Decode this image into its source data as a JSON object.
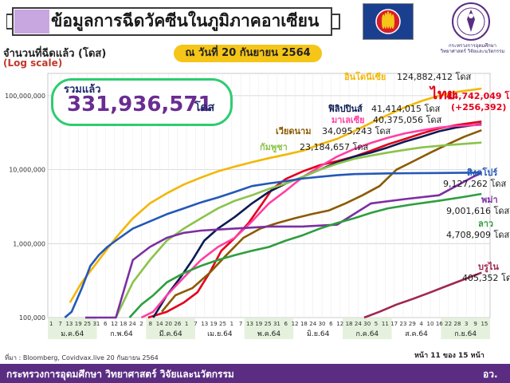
{
  "header": {
    "title": "ข้อมูลการฉีดวัคซีนในภูมิภาคอาเซียน",
    "ministry_text": "กระทรวงการอุดมศึกษา วิทยาศาสตร์ วิจัยและนวัตกรรม"
  },
  "total": {
    "label": "รวมแล้ว",
    "value": "331,936,571",
    "unit": "โดส"
  },
  "date_label": "ณ วันที่ 20 กันยายน 2564",
  "footer": {
    "source": "ที่มา : Bloomberg, Covidvax.live 20 กันยายน 2564",
    "page": "หน้า 11 ของ 15 หน้า",
    "ministry": "กระทรวงการอุดมศึกษา วิทยาศาสตร์ วิจัยและนวัตกรรม",
    "abbr": "อว."
  },
  "colors": {
    "footer": "#5a2d82",
    "accent_green": "#2ecc71",
    "date_box": "#f5c518"
  },
  "chart_data": {
    "type": "line",
    "ylabel": "จำนวนที่ฉีดแล้ว (โดส)",
    "ylabel_note": "(Log scale)",
    "yscale": "log",
    "ylim": [
      100000,
      200000000
    ],
    "yticks": [
      {
        "value": 100000,
        "label": "100,000"
      },
      {
        "value": 1000000,
        "label": "1,000,000"
      },
      {
        "value": 10000000,
        "label": "10,000,000"
      },
      {
        "value": 100000000,
        "label": "100,000,000"
      }
    ],
    "x_day_ticks": [
      "1",
      "7",
      "13",
      "19",
      "25",
      "31",
      "6",
      "12",
      "18",
      "24",
      "2",
      "8",
      "14",
      "20",
      "26",
      "1",
      "7",
      "13",
      "19",
      "25",
      "1",
      "7",
      "13",
      "19",
      "25",
      "31",
      "6",
      "12",
      "18",
      "24",
      "30",
      "6",
      "12",
      "18",
      "24",
      "30",
      "5",
      "11",
      "17",
      "23",
      "29",
      "4",
      "10",
      "16",
      "22",
      "28",
      "3",
      "9",
      "15"
    ],
    "months": [
      {
        "label": "ม.ค.64"
      },
      {
        "label": "ก.พ.64"
      },
      {
        "label": "มี.ค.64"
      },
      {
        "label": "เม.ย.64"
      },
      {
        "label": "พ.ค.64"
      },
      {
        "label": "มิ.ย.64"
      },
      {
        "label": "ก.ค.64"
      },
      {
        "label": "ส.ค.64"
      },
      {
        "label": "ก.ย.64"
      }
    ],
    "grid": true,
    "series": [
      {
        "name": "อินโดนีเซีย",
        "value_text": "124,882,412 โดส",
        "color": "#f2b705",
        "points": [
          [
            13,
            0.16
          ],
          [
            20,
            0.3
          ],
          [
            30,
            0.6
          ],
          [
            40,
            1.2
          ],
          [
            50,
            2.2
          ],
          [
            60,
            3.5
          ],
          [
            70,
            4.8
          ],
          [
            80,
            6.3
          ],
          [
            90,
            7.8
          ],
          [
            100,
            9.5
          ],
          [
            110,
            11
          ],
          [
            120,
            12.6
          ],
          [
            130,
            14.3
          ],
          [
            140,
            16
          ],
          [
            150,
            18
          ],
          [
            160,
            22
          ],
          [
            170,
            26
          ],
          [
            180,
            33
          ],
          [
            190,
            43
          ],
          [
            200,
            55
          ],
          [
            210,
            70
          ],
          [
            220,
            85
          ],
          [
            230,
            100
          ],
          [
            240,
            112
          ],
          [
            255,
            124.9
          ]
        ]
      },
      {
        "name": "ไทย",
        "value_text": "44,742,049 โดส",
        "extra_text": "(+256,392)",
        "color": "#e3001b",
        "points": [
          [
            59,
            0.1
          ],
          [
            70,
            0.12
          ],
          [
            80,
            0.16
          ],
          [
            88,
            0.22
          ],
          [
            95,
            0.4
          ],
          [
            102,
            0.8
          ],
          [
            110,
            1.2
          ],
          [
            118,
            1.9
          ],
          [
            125,
            3.2
          ],
          [
            132,
            5.5
          ],
          [
            140,
            7.5
          ],
          [
            150,
            9.5
          ],
          [
            160,
            11.5
          ],
          [
            170,
            13
          ],
          [
            180,
            15
          ],
          [
            190,
            18
          ],
          [
            200,
            22
          ],
          [
            210,
            26
          ],
          [
            220,
            31
          ],
          [
            230,
            36
          ],
          [
            240,
            40
          ],
          [
            255,
            44.7
          ]
        ]
      },
      {
        "name": "ฟิลิปปินส์",
        "value_text": "41,414,015 โดส",
        "color": "#0d1b52",
        "points": [
          [
            62,
            0.1
          ],
          [
            70,
            0.2
          ],
          [
            78,
            0.35
          ],
          [
            85,
            0.6
          ],
          [
            92,
            1.1
          ],
          [
            100,
            1.6
          ],
          [
            110,
            2.3
          ],
          [
            120,
            3.5
          ],
          [
            130,
            5
          ],
          [
            140,
            6.5
          ],
          [
            150,
            8
          ],
          [
            160,
            10
          ],
          [
            170,
            12.5
          ],
          [
            180,
            15
          ],
          [
            190,
            17
          ],
          [
            200,
            20
          ],
          [
            210,
            24
          ],
          [
            220,
            28
          ],
          [
            230,
            33
          ],
          [
            240,
            37
          ],
          [
            255,
            41.4
          ]
        ]
      },
      {
        "name": "มาเลเซีย",
        "value_text": "40,375,056 โดส",
        "color": "#ff3fa4",
        "points": [
          [
            55,
            0.1
          ],
          [
            62,
            0.12
          ],
          [
            70,
            0.2
          ],
          [
            80,
            0.35
          ],
          [
            90,
            0.6
          ],
          [
            100,
            0.9
          ],
          [
            110,
            1.2
          ],
          [
            120,
            2
          ],
          [
            130,
            3.5
          ],
          [
            140,
            5.2
          ],
          [
            150,
            8
          ],
          [
            160,
            11
          ],
          [
            170,
            15
          ],
          [
            180,
            19
          ],
          [
            190,
            23
          ],
          [
            200,
            27
          ],
          [
            210,
            31
          ],
          [
            220,
            34
          ],
          [
            230,
            37
          ],
          [
            240,
            39
          ],
          [
            255,
            40.4
          ]
        ]
      },
      {
        "name": "เวียดนาม",
        "value_text": "34,095,243 โดส",
        "color": "#8b5a00",
        "points": [
          [
            67,
            0.12
          ],
          [
            75,
            0.2
          ],
          [
            85,
            0.25
          ],
          [
            95,
            0.4
          ],
          [
            105,
            0.7
          ],
          [
            115,
            1.2
          ],
          [
            125,
            1.6
          ],
          [
            135,
            1.9
          ],
          [
            145,
            2.2
          ],
          [
            155,
            2.5
          ],
          [
            165,
            2.8
          ],
          [
            175,
            3.5
          ],
          [
            185,
            4.5
          ],
          [
            195,
            6
          ],
          [
            205,
            10
          ],
          [
            215,
            13
          ],
          [
            225,
            17
          ],
          [
            235,
            22
          ],
          [
            245,
            28
          ],
          [
            255,
            34.1
          ]
        ]
      },
      {
        "name": "กัมพูชา",
        "value_text": "23,184,657 โดส",
        "color": "#8bc34a",
        "points": [
          [
            40,
            0.1
          ],
          [
            50,
            0.3
          ],
          [
            60,
            0.6
          ],
          [
            70,
            1.1
          ],
          [
            80,
            1.6
          ],
          [
            90,
            2.2
          ],
          [
            100,
            3.0
          ],
          [
            110,
            3.8
          ],
          [
            120,
            4.5
          ],
          [
            130,
            5.5
          ],
          [
            140,
            6.5
          ],
          [
            150,
            8
          ],
          [
            160,
            10
          ],
          [
            170,
            12
          ],
          [
            180,
            14
          ],
          [
            190,
            15.5
          ],
          [
            200,
            17
          ],
          [
            210,
            18.5
          ],
          [
            220,
            20
          ],
          [
            235,
            21.5
          ],
          [
            255,
            23.2
          ]
        ]
      },
      {
        "name": "สิงคโปร์",
        "value_text": "9,127,262 โดส",
        "color": "#2458b8",
        "points": [
          [
            10,
            0.1
          ],
          [
            14,
            0.12
          ],
          [
            20,
            0.25
          ],
          [
            25,
            0.5
          ],
          [
            30,
            0.7
          ],
          [
            35,
            0.9
          ],
          [
            40,
            1.1
          ],
          [
            50,
            1.6
          ],
          [
            60,
            2.0
          ],
          [
            70,
            2.5
          ],
          [
            80,
            3
          ],
          [
            90,
            3.6
          ],
          [
            100,
            4.2
          ],
          [
            110,
            5
          ],
          [
            120,
            6
          ],
          [
            130,
            6.5
          ],
          [
            140,
            7
          ],
          [
            150,
            7.6
          ],
          [
            160,
            8
          ],
          [
            170,
            8.4
          ],
          [
            180,
            8.7
          ],
          [
            200,
            8.9
          ],
          [
            230,
            9.0
          ],
          [
            255,
            9.13
          ]
        ]
      },
      {
        "name": "พม่า",
        "value_text": "9,001,616 โดส",
        "color": "#7b2fa3",
        "points": [
          [
            22,
            0.1
          ],
          [
            30,
            0.1
          ],
          [
            40,
            0.1
          ],
          [
            50,
            0.6
          ],
          [
            60,
            0.9
          ],
          [
            70,
            1.2
          ],
          [
            80,
            1.4
          ],
          [
            90,
            1.5
          ],
          [
            100,
            1.55
          ],
          [
            110,
            1.6
          ],
          [
            130,
            1.7
          ],
          [
            150,
            1.7
          ],
          [
            170,
            1.8
          ],
          [
            190,
            3.5
          ],
          [
            210,
            4.0
          ],
          [
            230,
            4.5
          ],
          [
            240,
            6
          ],
          [
            250,
            8
          ],
          [
            255,
            9.0
          ]
        ]
      },
      {
        "name": "ลาว",
        "value_text": "4,708,909 โดส",
        "color": "#2e9e3e",
        "points": [
          [
            48,
            0.1
          ],
          [
            55,
            0.15
          ],
          [
            62,
            0.2
          ],
          [
            70,
            0.3
          ],
          [
            80,
            0.4
          ],
          [
            90,
            0.5
          ],
          [
            100,
            0.6
          ],
          [
            110,
            0.7
          ],
          [
            120,
            0.8
          ],
          [
            130,
            0.9
          ],
          [
            140,
            1.1
          ],
          [
            150,
            1.3
          ],
          [
            160,
            1.6
          ],
          [
            170,
            1.9
          ],
          [
            180,
            2.2
          ],
          [
            190,
            2.6
          ],
          [
            200,
            3.0
          ],
          [
            215,
            3.4
          ],
          [
            230,
            3.8
          ],
          [
            245,
            4.3
          ],
          [
            255,
            4.7
          ]
        ]
      },
      {
        "name": "บรูไน",
        "value_text": "405,352 โดส",
        "color": "#a1264d",
        "points": [
          [
            186,
            0.1
          ],
          [
            195,
            0.12
          ],
          [
            205,
            0.15
          ],
          [
            215,
            0.18
          ],
          [
            225,
            0.22
          ],
          [
            235,
            0.27
          ],
          [
            245,
            0.33
          ],
          [
            255,
            0.405
          ]
        ]
      }
    ]
  }
}
